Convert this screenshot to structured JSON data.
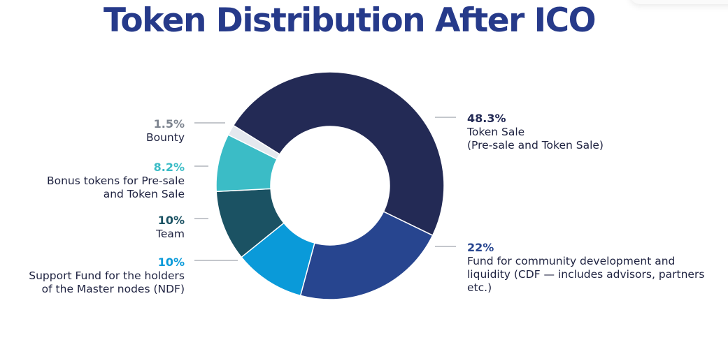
{
  "title": "Token Distribution After ICO",
  "chart_data": {
    "type": "pie",
    "title": "Token Distribution After ICO",
    "donut": true,
    "slices": [
      {
        "value": 48.3,
        "pct_label": "48.3%",
        "label_lines": [
          "Token Sale",
          "(Pre-sale and Token Sale)"
        ],
        "color": "#232a55",
        "side": "right"
      },
      {
        "value": 22,
        "pct_label": "22%",
        "label_lines": [
          "Fund for community development and",
          "liquidity (CDF — includes advisors, partners",
          "etc.)"
        ],
        "color": "#27458f",
        "side": "right"
      },
      {
        "value": 10,
        "pct_label": "10%",
        "label_lines": [
          "Support Fund for the holders",
          "of the Master nodes (NDF)"
        ],
        "color": "#0a9ad9",
        "side": "left"
      },
      {
        "value": 10,
        "pct_label": "10%",
        "label_lines": [
          "Team"
        ],
        "color": "#1b5263",
        "side": "left"
      },
      {
        "value": 8.2,
        "pct_label": "8.2%",
        "label_lines": [
          "Bonus tokens for Pre-sale",
          "and Token Sale"
        ],
        "color": "#3bbcc6",
        "side": "left"
      },
      {
        "value": 1.5,
        "pct_label": "1.5%",
        "label_lines": [
          "Bounty"
        ],
        "color": "#e4e8ee",
        "side": "left"
      }
    ],
    "label_colors": [
      "#232a55",
      "#27458f",
      "#0a9ad9",
      "#1b5263",
      "#3bbcc6",
      "#7e8590"
    ]
  }
}
